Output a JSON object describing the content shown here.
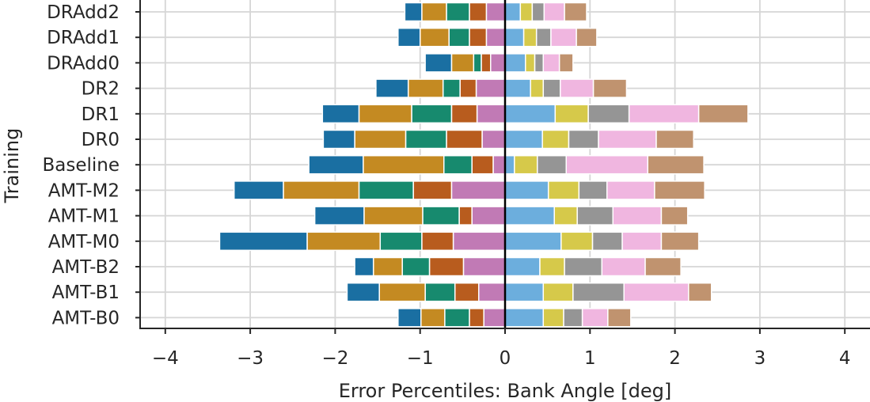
{
  "chart_data": {
    "type": "bar",
    "orientation": "horizontal",
    "stacked": "diverging",
    "xlabel": "Error Percentiles: Bank Angle [deg]",
    "ylabel": "Training",
    "xlim": [
      -4.3,
      4.3
    ],
    "xticks": [
      -4,
      -3,
      -2,
      -1,
      0,
      1,
      2,
      3,
      4
    ],
    "xtick_labels": [
      "−4",
      "−3",
      "−2",
      "−1",
      "0",
      "1",
      "2",
      "3",
      "4"
    ],
    "grid": true,
    "categories": [
      "DRAdd2",
      "DRAdd1",
      "DRAdd0",
      "DR2",
      "DR1",
      "DR0",
      "Baseline",
      "AMT-M2",
      "AMT-M1",
      "AMT-M0",
      "AMT-B2",
      "AMT-B1",
      "AMT-B0"
    ],
    "negative_colors": [
      "#c17ab5",
      "#b85c1e",
      "#178a6e",
      "#c48a22",
      "#1a6fa2"
    ],
    "positive_colors": [
      "#6caedd",
      "#d6c94a",
      "#959595",
      "#f0b6e0",
      "#c0936f"
    ],
    "series_negative": [
      [
        -0.22,
        -0.42,
        -0.69,
        -0.98,
        -1.18
      ],
      [
        -0.22,
        -0.42,
        -0.66,
        -1.0,
        -1.26
      ],
      [
        -0.17,
        -0.28,
        -0.37,
        -0.63,
        -0.94
      ],
      [
        -0.34,
        -0.53,
        -0.73,
        -1.14,
        -1.52
      ],
      [
        -0.33,
        -0.63,
        -1.1,
        -1.72,
        -2.15
      ],
      [
        -0.27,
        -0.69,
        -1.17,
        -1.77,
        -2.14
      ],
      [
        -0.14,
        -0.39,
        -0.72,
        -1.67,
        -2.31
      ],
      [
        -0.63,
        -1.08,
        -1.72,
        -2.61,
        -3.19
      ],
      [
        -0.39,
        -0.54,
        -0.97,
        -1.66,
        -2.24
      ],
      [
        -0.61,
        -0.98,
        -1.47,
        -2.33,
        -3.36
      ],
      [
        -0.49,
        -0.89,
        -1.21,
        -1.55,
        -1.77
      ],
      [
        -0.31,
        -0.59,
        -0.94,
        -1.48,
        -1.86
      ],
      [
        -0.25,
        -0.42,
        -0.71,
        -0.99,
        -1.26
      ]
    ],
    "series_positive": [
      [
        0.18,
        0.32,
        0.46,
        0.7,
        0.96
      ],
      [
        0.22,
        0.37,
        0.54,
        0.84,
        1.08
      ],
      [
        0.24,
        0.35,
        0.45,
        0.64,
        0.8
      ],
      [
        0.3,
        0.45,
        0.65,
        1.04,
        1.43
      ],
      [
        0.59,
        0.98,
        1.46,
        2.28,
        2.86
      ],
      [
        0.44,
        0.75,
        1.1,
        1.78,
        2.22
      ],
      [
        0.11,
        0.38,
        0.72,
        1.68,
        2.34
      ],
      [
        0.51,
        0.87,
        1.2,
        1.76,
        2.35
      ],
      [
        0.58,
        0.85,
        1.27,
        1.84,
        2.15
      ],
      [
        0.66,
        1.03,
        1.38,
        1.84,
        2.28
      ],
      [
        0.41,
        0.7,
        1.14,
        1.65,
        2.07
      ],
      [
        0.45,
        0.8,
        1.4,
        2.16,
        2.43
      ],
      [
        0.45,
        0.69,
        0.91,
        1.21,
        1.48
      ]
    ]
  }
}
